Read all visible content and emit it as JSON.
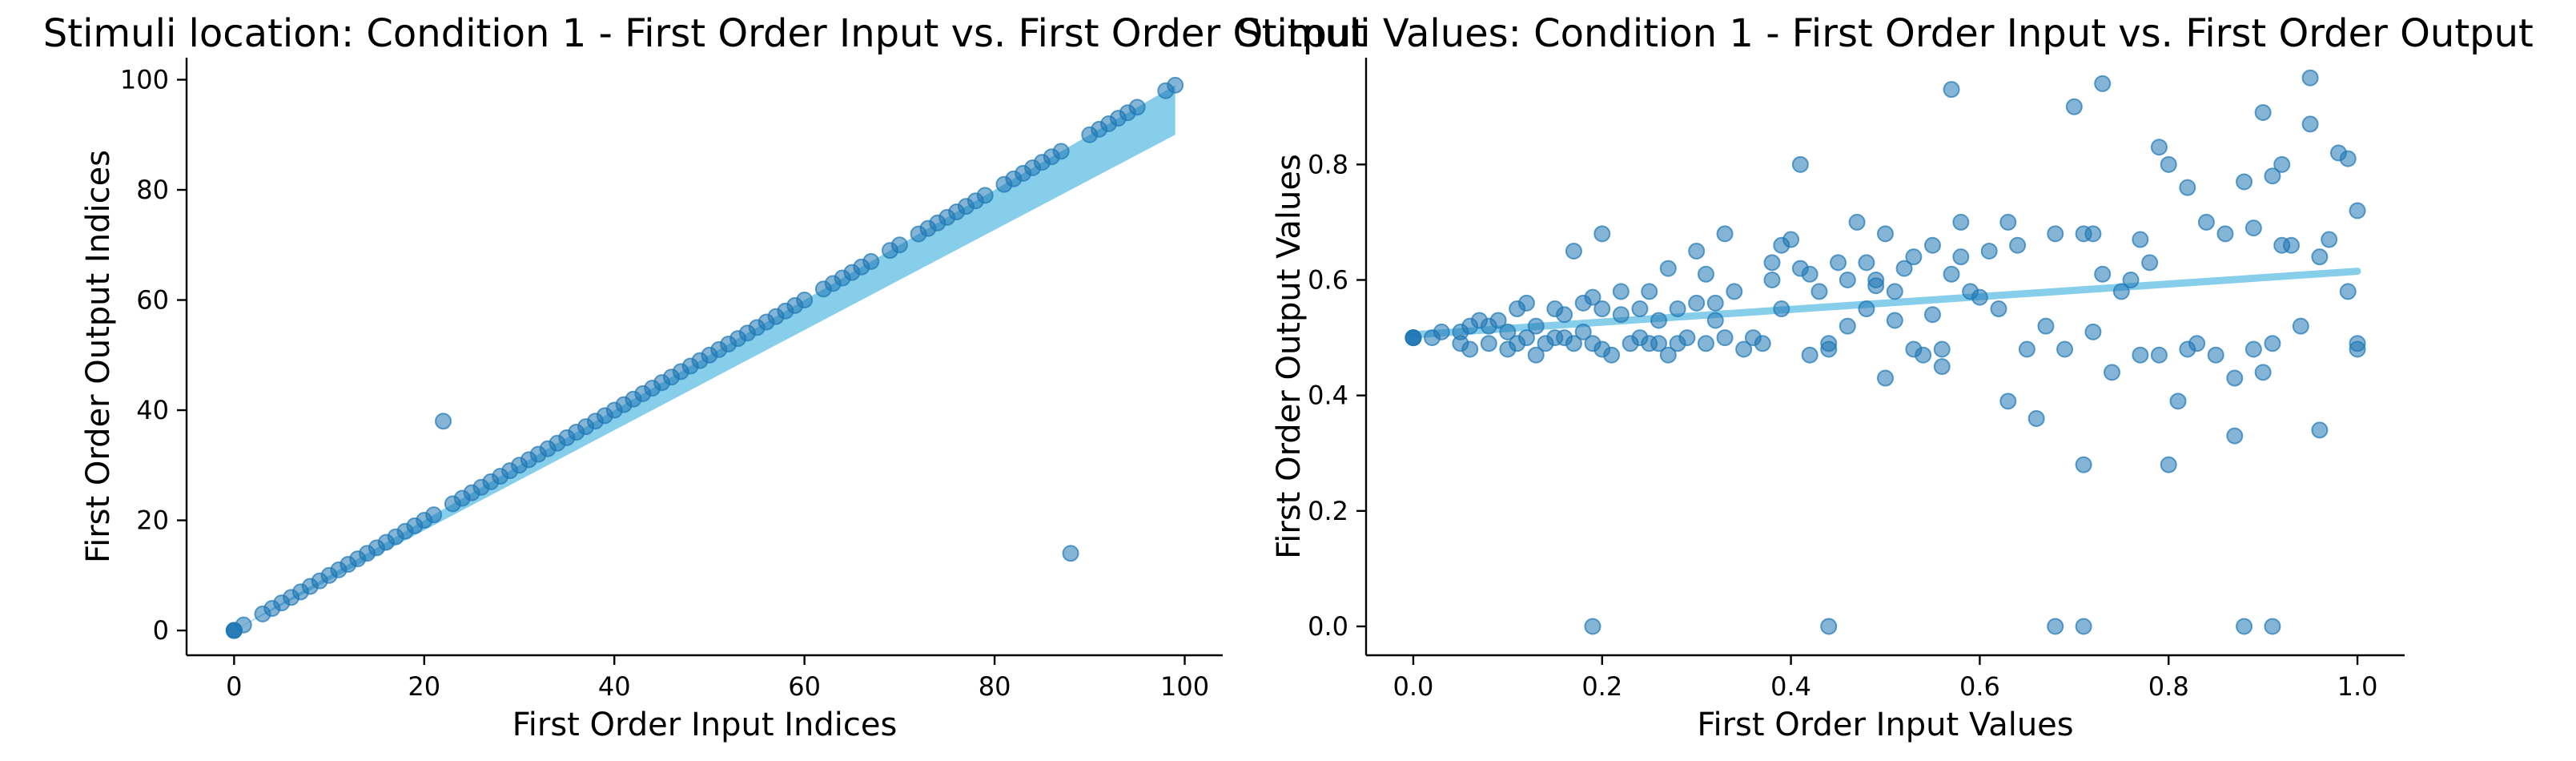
{
  "chart_data": [
    {
      "type": "scatter",
      "title": "Stimuli location: Condition 1 - First Order Input vs. First Order Output",
      "xlabel": "First Order Input Indices",
      "ylabel": "First Order Output Indices",
      "xlim": [
        -5,
        104
      ],
      "ylim": [
        -4.5,
        104
      ],
      "xticks": [
        0,
        20,
        40,
        60,
        80,
        100
      ],
      "yticks": [
        0,
        20,
        40,
        60,
        80,
        100
      ],
      "x_tick_labels": [
        "0",
        "20",
        "40",
        "60",
        "80",
        "100"
      ],
      "y_tick_labels": [
        "0",
        "20",
        "40",
        "60",
        "80",
        "100"
      ],
      "grid": false,
      "point_color": "#1f77b4",
      "fit_color": "#87ceeb",
      "points": [
        [
          0,
          0
        ],
        [
          0,
          0
        ],
        [
          0,
          0
        ],
        [
          0,
          0
        ],
        [
          1,
          1
        ],
        [
          3,
          3
        ],
        [
          4,
          4
        ],
        [
          5,
          5
        ],
        [
          6,
          6
        ],
        [
          7,
          7
        ],
        [
          8,
          8
        ],
        [
          9,
          9
        ],
        [
          10,
          10
        ],
        [
          11,
          11
        ],
        [
          12,
          12
        ],
        [
          13,
          13
        ],
        [
          14,
          14
        ],
        [
          15,
          15
        ],
        [
          16,
          16
        ],
        [
          17,
          17
        ],
        [
          18,
          18
        ],
        [
          19,
          19
        ],
        [
          20,
          20
        ],
        [
          21,
          21
        ],
        [
          22,
          38
        ],
        [
          23,
          23
        ],
        [
          24,
          24
        ],
        [
          25,
          25
        ],
        [
          26,
          26
        ],
        [
          27,
          27
        ],
        [
          28,
          28
        ],
        [
          29,
          29
        ],
        [
          30,
          30
        ],
        [
          31,
          31
        ],
        [
          32,
          32
        ],
        [
          33,
          33
        ],
        [
          34,
          34
        ],
        [
          35,
          35
        ],
        [
          36,
          36
        ],
        [
          37,
          37
        ],
        [
          38,
          38
        ],
        [
          39,
          39
        ],
        [
          40,
          40
        ],
        [
          41,
          41
        ],
        [
          42,
          42
        ],
        [
          43,
          43
        ],
        [
          44,
          44
        ],
        [
          45,
          45
        ],
        [
          46,
          46
        ],
        [
          47,
          47
        ],
        [
          48,
          48
        ],
        [
          49,
          49
        ],
        [
          50,
          50
        ],
        [
          51,
          51
        ],
        [
          52,
          52
        ],
        [
          53,
          53
        ],
        [
          54,
          54
        ],
        [
          55,
          55
        ],
        [
          56,
          56
        ],
        [
          57,
          57
        ],
        [
          58,
          58
        ],
        [
          59,
          59
        ],
        [
          60,
          60
        ],
        [
          62,
          62
        ],
        [
          63,
          63
        ],
        [
          64,
          64
        ],
        [
          65,
          65
        ],
        [
          66,
          66
        ],
        [
          67,
          67
        ],
        [
          69,
          69
        ],
        [
          70,
          70
        ],
        [
          72,
          72
        ],
        [
          73,
          73
        ],
        [
          74,
          74
        ],
        [
          75,
          75
        ],
        [
          76,
          76
        ],
        [
          77,
          77
        ],
        [
          78,
          78
        ],
        [
          79,
          79
        ],
        [
          81,
          81
        ],
        [
          82,
          82
        ],
        [
          83,
          83
        ],
        [
          84,
          84
        ],
        [
          85,
          85
        ],
        [
          86,
          86
        ],
        [
          87,
          87
        ],
        [
          88,
          14
        ],
        [
          90,
          90
        ],
        [
          91,
          91
        ],
        [
          92,
          92
        ],
        [
          93,
          93
        ],
        [
          94,
          94
        ],
        [
          95,
          95
        ],
        [
          98,
          98
        ],
        [
          99,
          99
        ]
      ],
      "fit_band": {
        "x": [
          0,
          99
        ],
        "y_upper": [
          0,
          99
        ],
        "y_lower": [
          0,
          90
        ]
      }
    },
    {
      "type": "scatter",
      "title": "Stimuli Values: Condition 1 - First Order Input vs. First Order Output",
      "xlabel": "First Order Input Values",
      "ylabel": "First Order Output Values",
      "xlim": [
        -0.05,
        1.05
      ],
      "ylim": [
        -0.05,
        0.985
      ],
      "xticks": [
        0.0,
        0.2,
        0.4,
        0.6,
        0.8,
        1.0
      ],
      "yticks": [
        0.0,
        0.2,
        0.4,
        0.6,
        0.8
      ],
      "x_tick_labels": [
        "0.0",
        "0.2",
        "0.4",
        "0.6",
        "0.8",
        "1.0"
      ],
      "y_tick_labels": [
        "0.0",
        "0.2",
        "0.4",
        "0.6",
        "0.8"
      ],
      "grid": false,
      "point_color": "#1f77b4",
      "fit_color": "#87ceeb",
      "fit_line": {
        "x": [
          0.0,
          1.0
        ],
        "y": [
          0.505,
          0.615
        ]
      },
      "points": [
        [
          0,
          0.5
        ],
        [
          0,
          0.5
        ],
        [
          0,
          0.5
        ],
        [
          0,
          0.5
        ],
        [
          0.02,
          0.5
        ],
        [
          0.03,
          0.51
        ],
        [
          0.05,
          0.51
        ],
        [
          0.05,
          0.49
        ],
        [
          0.06,
          0.52
        ],
        [
          0.06,
          0.48
        ],
        [
          0.07,
          0.53
        ],
        [
          0.08,
          0.49
        ],
        [
          0.08,
          0.52
        ],
        [
          0.09,
          0.53
        ],
        [
          0.1,
          0.51
        ],
        [
          0.1,
          0.48
        ],
        [
          0.11,
          0.49
        ],
        [
          0.11,
          0.55
        ],
        [
          0.12,
          0.5
        ],
        [
          0.12,
          0.56
        ],
        [
          0.13,
          0.47
        ],
        [
          0.13,
          0.52
        ],
        [
          0.14,
          0.49
        ],
        [
          0.15,
          0.5
        ],
        [
          0.15,
          0.55
        ],
        [
          0.16,
          0.54
        ],
        [
          0.16,
          0.5
        ],
        [
          0.17,
          0.65
        ],
        [
          0.17,
          0.49
        ],
        [
          0.18,
          0.56
        ],
        [
          0.18,
          0.51
        ],
        [
          0.19,
          0.57
        ],
        [
          0.19,
          0.49
        ],
        [
          0.2,
          0.55
        ],
        [
          0.2,
          0.48
        ],
        [
          0.2,
          0.68
        ],
        [
          0.21,
          0.47
        ],
        [
          0.22,
          0.58
        ],
        [
          0.22,
          0.54
        ],
        [
          0.23,
          0.49
        ],
        [
          0.24,
          0.5
        ],
        [
          0.24,
          0.55
        ],
        [
          0.25,
          0.58
        ],
        [
          0.25,
          0.49
        ],
        [
          0.26,
          0.53
        ],
        [
          0.26,
          0.49
        ],
        [
          0.27,
          0.62
        ],
        [
          0.27,
          0.47
        ],
        [
          0.28,
          0.55
        ],
        [
          0.28,
          0.49
        ],
        [
          0.29,
          0.5
        ],
        [
          0.3,
          0.56
        ],
        [
          0.3,
          0.65
        ],
        [
          0.31,
          0.49
        ],
        [
          0.31,
          0.61
        ],
        [
          0.32,
          0.53
        ],
        [
          0.32,
          0.56
        ],
        [
          0.33,
          0.68
        ],
        [
          0.33,
          0.5
        ],
        [
          0.34,
          0.58
        ],
        [
          0.35,
          0.48
        ],
        [
          0.36,
          0.5
        ],
        [
          0.37,
          0.49
        ],
        [
          0.38,
          0.6
        ],
        [
          0.38,
          0.63
        ],
        [
          0.39,
          0.66
        ],
        [
          0.39,
          0.55
        ],
        [
          0.4,
          0.67
        ],
        [
          0.41,
          0.62
        ],
        [
          0.41,
          0.8
        ],
        [
          0.42,
          0.61
        ],
        [
          0.42,
          0.47
        ],
        [
          0.43,
          0.58
        ],
        [
          0.44,
          0.48
        ],
        [
          0.44,
          0.49
        ],
        [
          0.45,
          0.63
        ],
        [
          0.46,
          0.6
        ],
        [
          0.46,
          0.52
        ],
        [
          0.47,
          0.7
        ],
        [
          0.48,
          0.63
        ],
        [
          0.48,
          0.55
        ],
        [
          0.49,
          0.59
        ],
        [
          0.49,
          0.6
        ],
        [
          0.5,
          0.68
        ],
        [
          0.5,
          0.43
        ],
        [
          0.51,
          0.58
        ],
        [
          0.51,
          0.53
        ],
        [
          0.52,
          0.62
        ],
        [
          0.53,
          0.64
        ],
        [
          0.53,
          0.48
        ],
        [
          0.54,
          0.47
        ],
        [
          0.55,
          0.54
        ],
        [
          0.55,
          0.66
        ],
        [
          0.56,
          0.45
        ],
        [
          0.56,
          0.48
        ],
        [
          0.57,
          0.93
        ],
        [
          0.57,
          0.61
        ],
        [
          0.58,
          0.7
        ],
        [
          0.58,
          0.64
        ],
        [
          0.59,
          0.58
        ],
        [
          0.6,
          0.57
        ],
        [
          0.61,
          0.65
        ],
        [
          0.62,
          0.55
        ],
        [
          0.63,
          0.7
        ],
        [
          0.63,
          0.39
        ],
        [
          0.64,
          0.66
        ],
        [
          0.65,
          0.48
        ],
        [
          0.66,
          0.36
        ],
        [
          0.67,
          0.52
        ],
        [
          0.68,
          0.68
        ],
        [
          0.69,
          0.48
        ],
        [
          0.7,
          0.9
        ],
        [
          0.71,
          0.28
        ],
        [
          0.71,
          0.68
        ],
        [
          0.72,
          0.51
        ],
        [
          0.72,
          0.68
        ],
        [
          0.73,
          0.61
        ],
        [
          0.73,
          0.94
        ],
        [
          0.74,
          0.44
        ],
        [
          0.75,
          0.58
        ],
        [
          0.76,
          0.6
        ],
        [
          0.77,
          0.47
        ],
        [
          0.77,
          0.67
        ],
        [
          0.78,
          0.63
        ],
        [
          0.79,
          0.47
        ],
        [
          0.79,
          0.83
        ],
        [
          0.8,
          0.8
        ],
        [
          0.8,
          0.28
        ],
        [
          0.81,
          0.39
        ],
        [
          0.82,
          0.48
        ],
        [
          0.82,
          0.76
        ],
        [
          0.83,
          0.49
        ],
        [
          0.84,
          0.7
        ],
        [
          0.85,
          0.47
        ],
        [
          0.86,
          0.68
        ],
        [
          0.87,
          0.43
        ],
        [
          0.87,
          0.33
        ],
        [
          0.88,
          0.77
        ],
        [
          0.89,
          0.69
        ],
        [
          0.89,
          0.48
        ],
        [
          0.9,
          0.89
        ],
        [
          0.9,
          0.44
        ],
        [
          0.91,
          0.78
        ],
        [
          0.91,
          0.49
        ],
        [
          0.92,
          0.8
        ],
        [
          0.92,
          0.66
        ],
        [
          0.93,
          0.66
        ],
        [
          0.94,
          0.52
        ],
        [
          0.95,
          0.95
        ],
        [
          0.95,
          0.87
        ],
        [
          0.96,
          0.34
        ],
        [
          0.96,
          0.64
        ],
        [
          0.97,
          0.67
        ],
        [
          0.98,
          0.82
        ],
        [
          0.99,
          0.58
        ],
        [
          0.99,
          0.81
        ],
        [
          1.0,
          0.72
        ],
        [
          1.0,
          0.48
        ],
        [
          1.0,
          0.49
        ],
        [
          0.19,
          0.0
        ],
        [
          0.44,
          0.0
        ],
        [
          0.68,
          0.0
        ],
        [
          0.71,
          0.0
        ],
        [
          0.88,
          0.0
        ],
        [
          0.91,
          0.0
        ]
      ]
    }
  ]
}
